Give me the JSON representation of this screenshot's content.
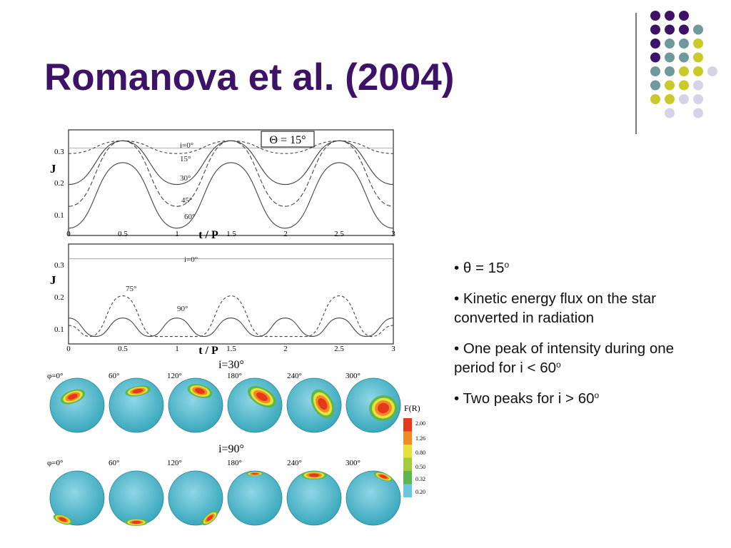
{
  "slide": {
    "title": "Romanova et al. (2004)",
    "bullets": [
      {
        "main": "• θ = 15",
        "sup": "o"
      },
      {
        "main": "• Kinetic energy flux on the star converted in radiation",
        "sup": ""
      },
      {
        "main": "• One peak of intensity during one period for i < 60",
        "sup": "o"
      },
      {
        "main": "• Two peaks for i > 60",
        "sup": "o"
      }
    ],
    "colors": {
      "title": "#3d1368",
      "dot_purple": "#3d1368",
      "dot_teal": "#6e9a9c",
      "dot_yellow": "#c9c92a",
      "dot_lavender": "#d6d3e6"
    }
  },
  "figure": {
    "top_panel": {
      "label": "Θ = 15°",
      "ylabel": "J",
      "xlabel": "t / P",
      "yticks": [
        "0.1",
        "0.2",
        "0.3"
      ],
      "xticks": [
        "0",
        "0.5",
        "1",
        "1.5",
        "2",
        "2.5",
        "3"
      ],
      "curve_labels": [
        "i=0°",
        "15°",
        "30°",
        "45°",
        "60°"
      ]
    },
    "bottom_panel": {
      "ylabel": "J",
      "xlabel": "t / P",
      "yticks": [
        "0.1",
        "0.2",
        "0.3"
      ],
      "xticks": [
        "0",
        "0.5",
        "1",
        "1.5",
        "2",
        "2.5",
        "3"
      ],
      "curve_labels": [
        "i=0°",
        "75°",
        "90°"
      ]
    },
    "maps_row1": {
      "title": "i=30°",
      "phases": [
        "φ=0°",
        "60°",
        "120°",
        "180°",
        "240°",
        "300°"
      ]
    },
    "maps_row2": {
      "title": "i=90°",
      "phases": [
        "φ=0°",
        "60°",
        "120°",
        "180°",
        "240°",
        "300°"
      ]
    },
    "colorbar": {
      "title": "F(R)",
      "ticks": [
        "2.00",
        "1.26",
        "0.80",
        "0.50",
        "0.32",
        "0.20"
      ],
      "colors": [
        "#e8381c",
        "#f08a24",
        "#e6e23a",
        "#a3cc3c",
        "#5cb84a",
        "#6cc6df"
      ]
    }
  },
  "chart_data": [
    {
      "type": "line",
      "title": "Θ = 15°",
      "xlabel": "t / P",
      "ylabel": "J",
      "xlim": [
        0,
        3
      ],
      "ylim": [
        0.06,
        0.35
      ],
      "series": [
        {
          "name": "i=0°",
          "x": [
            0,
            0.5,
            1,
            1.5,
            2,
            2.5,
            3
          ],
          "y": [
            0.3,
            0.3,
            0.3,
            0.3,
            0.3,
            0.3,
            0.3
          ]
        },
        {
          "name": "15°",
          "x": [
            0,
            0.5,
            1,
            1.5,
            2,
            2.5,
            3
          ],
          "y": [
            0.285,
            0.32,
            0.285,
            0.32,
            0.285,
            0.32,
            0.285
          ]
        },
        {
          "name": "30°",
          "x": [
            0,
            0.5,
            1,
            1.5,
            2,
            2.5,
            3
          ],
          "y": [
            0.2,
            0.32,
            0.2,
            0.32,
            0.2,
            0.32,
            0.2
          ]
        },
        {
          "name": "45°",
          "x": [
            0,
            0.5,
            1,
            1.5,
            2,
            2.5,
            3
          ],
          "y": [
            0.14,
            0.32,
            0.14,
            0.32,
            0.14,
            0.32,
            0.14
          ]
        },
        {
          "name": "60°",
          "x": [
            0,
            0.5,
            1,
            1.5,
            2,
            2.5,
            3
          ],
          "y": [
            0.08,
            0.26,
            0.08,
            0.26,
            0.08,
            0.26,
            0.08
          ]
        }
      ]
    },
    {
      "type": "line",
      "xlabel": "t / P",
      "ylabel": "J",
      "xlim": [
        0,
        3
      ],
      "ylim": [
        0.07,
        0.34
      ],
      "series": [
        {
          "name": "i=0°",
          "x": [
            0,
            0.5,
            1,
            1.5,
            2,
            2.5,
            3
          ],
          "y": [
            0.3,
            0.3,
            0.3,
            0.3,
            0.3,
            0.3,
            0.3
          ]
        },
        {
          "name": "75°",
          "x": [
            0,
            0.2,
            0.5,
            0.8,
            1,
            1.2,
            1.5,
            1.8,
            2,
            2.2,
            2.5,
            2.8,
            3
          ],
          "y": [
            0.12,
            0.09,
            0.2,
            0.09,
            0.09,
            0.09,
            0.2,
            0.09,
            0.09,
            0.09,
            0.2,
            0.09,
            0.12
          ]
        },
        {
          "name": "90°",
          "x": [
            0,
            0.25,
            0.5,
            0.75,
            1,
            1.25,
            1.5,
            1.75,
            2,
            2.25,
            2.5,
            2.75,
            3
          ],
          "y": [
            0.14,
            0.09,
            0.14,
            0.09,
            0.14,
            0.09,
            0.14,
            0.09,
            0.14,
            0.09,
            0.14,
            0.09,
            0.14
          ]
        }
      ]
    }
  ]
}
